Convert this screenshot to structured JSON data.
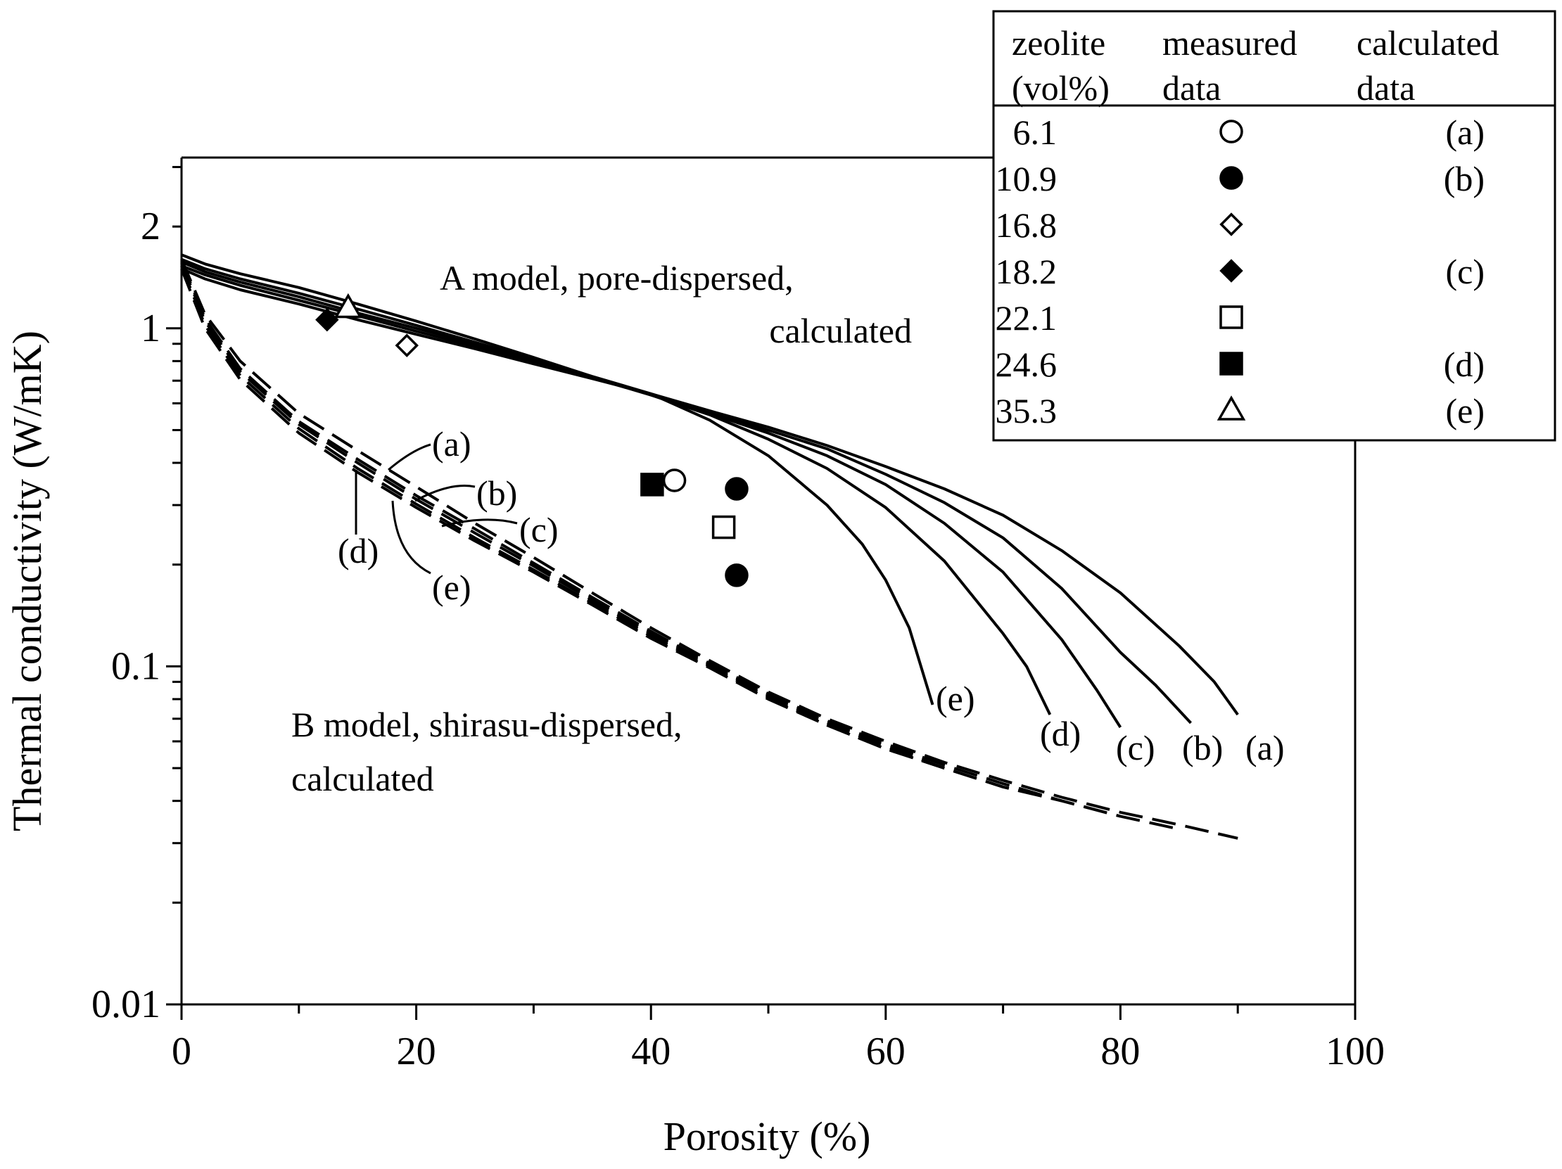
{
  "chart_data": {
    "type": "line",
    "yscale": "log",
    "xlabel": "Porosity (%)",
    "ylabel": "Thermal conductivity (W/mK)",
    "xlim": [
      0,
      100
    ],
    "ylim": [
      0.01,
      3.2
    ],
    "x_ticks": [
      0,
      20,
      40,
      60,
      80,
      100
    ],
    "x_tick_labels": [
      "0",
      "20",
      "40",
      "60",
      "80",
      "100"
    ],
    "y_ticks": [
      0.01,
      0.1,
      1,
      2
    ],
    "y_tick_labels": [
      "0.01",
      "0.1",
      "1",
      "2"
    ],
    "grid": false,
    "series": [
      {
        "name": "A model (a)",
        "style": "solid",
        "label": "(a)",
        "x": [
          0,
          2,
          5,
          10,
          15,
          20,
          25,
          30,
          35,
          40,
          45,
          50,
          55,
          60,
          65,
          70,
          75,
          80,
          85,
          88,
          90
        ],
        "y": [
          1.65,
          1.55,
          1.45,
          1.32,
          1.18,
          1.05,
          0.93,
          0.82,
          0.72,
          0.64,
          0.57,
          0.51,
          0.45,
          0.39,
          0.335,
          0.28,
          0.22,
          0.165,
          0.115,
          0.09,
          0.072
        ]
      },
      {
        "name": "A model (b)",
        "style": "solid",
        "label": "(b)",
        "x": [
          0,
          2,
          5,
          10,
          15,
          20,
          25,
          30,
          35,
          40,
          45,
          50,
          55,
          60,
          65,
          70,
          75,
          80,
          83,
          86
        ],
        "y": [
          1.6,
          1.5,
          1.4,
          1.27,
          1.14,
          1.02,
          0.91,
          0.81,
          0.72,
          0.64,
          0.565,
          0.5,
          0.44,
          0.37,
          0.305,
          0.24,
          0.17,
          0.11,
          0.088,
          0.068
        ]
      },
      {
        "name": "A model (c)",
        "style": "solid",
        "label": "(c)",
        "x": [
          0,
          2,
          5,
          10,
          15,
          20,
          25,
          30,
          35,
          40,
          45,
          50,
          55,
          60,
          65,
          70,
          75,
          78,
          80
        ],
        "y": [
          1.57,
          1.47,
          1.37,
          1.24,
          1.11,
          1.0,
          0.9,
          0.8,
          0.715,
          0.635,
          0.56,
          0.49,
          0.42,
          0.345,
          0.265,
          0.19,
          0.12,
          0.085,
          0.066
        ]
      },
      {
        "name": "A model (d)",
        "style": "solid",
        "label": "(d)",
        "x": [
          0,
          2,
          5,
          10,
          15,
          20,
          25,
          30,
          35,
          40,
          45,
          50,
          55,
          60,
          65,
          70,
          72,
          74
        ],
        "y": [
          1.53,
          1.44,
          1.34,
          1.21,
          1.09,
          0.98,
          0.885,
          0.795,
          0.715,
          0.635,
          0.555,
          0.47,
          0.385,
          0.295,
          0.205,
          0.125,
          0.1,
          0.072
        ]
      },
      {
        "name": "A model (e)",
        "style": "solid",
        "label": "(e)",
        "x": [
          0,
          2,
          5,
          10,
          15,
          20,
          25,
          30,
          35,
          40,
          45,
          50,
          55,
          58,
          60,
          62,
          64
        ],
        "y": [
          1.5,
          1.4,
          1.3,
          1.18,
          1.06,
          0.96,
          0.87,
          0.785,
          0.71,
          0.64,
          0.535,
          0.42,
          0.3,
          0.23,
          0.18,
          0.13,
          0.077
        ]
      },
      {
        "name": "B model (a)",
        "style": "dashed",
        "label": "(a)",
        "x": [
          0,
          2,
          5,
          10,
          15,
          20,
          25,
          30,
          35,
          40,
          45,
          50,
          55,
          60,
          65,
          70,
          75,
          80,
          85,
          90
        ],
        "y": [
          1.6,
          1.1,
          0.8,
          0.56,
          0.435,
          0.34,
          0.265,
          0.21,
          0.165,
          0.13,
          0.104,
          0.084,
          0.07,
          0.06,
          0.052,
          0.046,
          0.041,
          0.037,
          0.034,
          0.031
        ]
      },
      {
        "name": "B model (b)",
        "style": "dashed",
        "label": "(b)",
        "x": [
          0,
          2,
          5,
          10,
          15,
          20,
          25,
          30,
          35,
          40,
          45,
          50,
          55,
          60,
          65,
          70,
          75,
          80,
          85
        ],
        "y": [
          1.58,
          1.07,
          0.76,
          0.53,
          0.41,
          0.32,
          0.255,
          0.202,
          0.16,
          0.127,
          0.102,
          0.083,
          0.069,
          0.059,
          0.051,
          0.045,
          0.04,
          0.036,
          0.033
        ]
      },
      {
        "name": "B model (c)",
        "style": "dashed",
        "label": "(c)",
        "x": [
          0,
          2,
          5,
          10,
          15,
          20,
          25,
          30,
          35,
          40,
          45,
          50,
          55,
          60,
          65,
          70,
          75,
          80
        ],
        "y": [
          1.56,
          1.05,
          0.745,
          0.52,
          0.4,
          0.312,
          0.248,
          0.198,
          0.157,
          0.125,
          0.101,
          0.082,
          0.068,
          0.058,
          0.05,
          0.044,
          0.04,
          0.036
        ]
      },
      {
        "name": "B model (d)",
        "style": "dashed",
        "label": "(d)",
        "x": [
          0,
          2,
          5,
          10,
          15,
          20,
          25,
          30,
          35,
          40,
          45,
          50,
          55,
          60,
          65,
          70,
          75
        ],
        "y": [
          1.53,
          1.02,
          0.725,
          0.505,
          0.385,
          0.302,
          0.24,
          0.193,
          0.154,
          0.123,
          0.1,
          0.081,
          0.067,
          0.057,
          0.05,
          0.044,
          0.04
        ]
      },
      {
        "name": "B model (e)",
        "style": "dashed",
        "label": "(e)",
        "x": [
          0,
          2,
          5,
          10,
          15,
          20,
          25,
          30,
          35,
          40,
          45,
          50,
          55,
          60,
          65
        ],
        "y": [
          1.5,
          1.0,
          0.705,
          0.49,
          0.375,
          0.295,
          0.235,
          0.19,
          0.152,
          0.121,
          0.099,
          0.08,
          0.067,
          0.057,
          0.05
        ]
      }
    ],
    "measured": [
      {
        "zeolite": "6.1",
        "marker": "circle-open",
        "points": [
          [
            42,
            0.355
          ]
        ]
      },
      {
        "zeolite": "10.9",
        "marker": "circle-filled",
        "points": [
          [
            47.3,
            0.335
          ],
          [
            47.3,
            0.186
          ]
        ]
      },
      {
        "zeolite": "16.8",
        "marker": "diamond-open",
        "points": [
          [
            19.2,
            0.89
          ]
        ]
      },
      {
        "zeolite": "18.2",
        "marker": "diamond-filled",
        "points": [
          [
            12.4,
            1.06
          ]
        ]
      },
      {
        "zeolite": "22.1",
        "marker": "square-open",
        "points": [
          [
            46.2,
            0.258
          ]
        ]
      },
      {
        "zeolite": "24.6",
        "marker": "square-filled",
        "points": [
          [
            40.1,
            0.345
          ]
        ]
      },
      {
        "zeolite": "35.3",
        "marker": "triangle-open",
        "points": [
          [
            14.2,
            1.15
          ]
        ]
      }
    ],
    "annotations": {
      "a_model_line1": "A model, pore-dispersed,",
      "a_model_line2": "calculated",
      "b_model_line1": "B model, shirasu-dispersed,",
      "b_model_line2": "calculated",
      "curve_labels_solid": [
        "(e)",
        "(d)",
        "(c)",
        "(b)",
        "(a)"
      ],
      "curve_labels_dashed": [
        "(a)",
        "(b)",
        "(c)",
        "(d)",
        "(e)"
      ]
    },
    "legend": {
      "placement": "top-right",
      "headers": {
        "col1_line1": "zeolite",
        "col1_line2": "(vol%)",
        "col2_line1": "measured",
        "col2_line2": "data",
        "col3_line1": "calculated",
        "col3_line2": "data"
      },
      "rows": [
        {
          "zeolite": "6.1",
          "marker": "circle-open",
          "calc": "(a)"
        },
        {
          "zeolite": "10.9",
          "marker": "circle-filled",
          "calc": "(b)"
        },
        {
          "zeolite": "16.8",
          "marker": "diamond-open",
          "calc": ""
        },
        {
          "zeolite": "18.2",
          "marker": "diamond-filled",
          "calc": "(c)"
        },
        {
          "zeolite": "22.1",
          "marker": "square-open",
          "calc": ""
        },
        {
          "zeolite": "24.6",
          "marker": "square-filled",
          "calc": "(d)"
        },
        {
          "zeolite": "35.3",
          "marker": "triangle-open",
          "calc": "(e)"
        }
      ]
    }
  }
}
